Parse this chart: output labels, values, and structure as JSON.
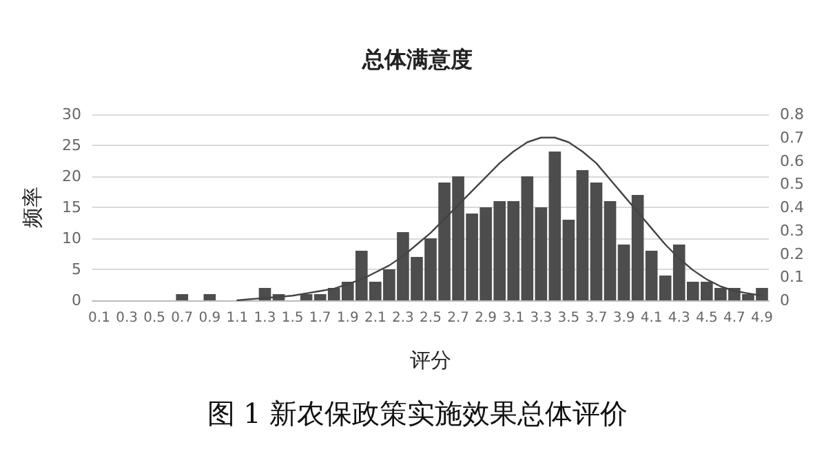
{
  "chart_data": {
    "type": "bar",
    "title": "总体满意度",
    "ylabel": "频率",
    "xlabel": "评分",
    "annotations": [
      "图 1 新农保政策实施效果总体评价"
    ],
    "categories": [
      "0.1",
      null,
      "0.3",
      null,
      "0.5",
      null,
      "0.7",
      null,
      "0.9",
      null,
      "1.1",
      null,
      "1.3",
      null,
      "1.5",
      null,
      "1.7",
      null,
      "1.9",
      null,
      "2.1",
      null,
      "2.3",
      null,
      "2.5",
      null,
      "2.7",
      null,
      "2.9",
      null,
      "3.1",
      null,
      "3.3",
      null,
      "3.5",
      null,
      "3.7",
      null,
      "3.9",
      null,
      "4.1",
      null,
      "4.3",
      null,
      "4.5",
      null,
      "4.7",
      null,
      "4.9"
    ],
    "series": [
      {
        "color": "#4d4d4d",
        "values": [
          0,
          0,
          0,
          0,
          0,
          0,
          1,
          0,
          1,
          0,
          0,
          0,
          2,
          1,
          0,
          1,
          1,
          2,
          3,
          8,
          3,
          5,
          11,
          7,
          10,
          19,
          20,
          14,
          15,
          16,
          16,
          20,
          15,
          24,
          13,
          21,
          19,
          16,
          9,
          17,
          8,
          4,
          9,
          3,
          3,
          2,
          2,
          1,
          2
        ]
      },
      {
        "type": "line",
        "axis": "y2",
        "color": "#444444",
        "values": [
          null,
          null,
          null,
          null,
          null,
          null,
          null,
          null,
          null,
          null,
          0,
          0.005,
          0.01,
          0.015,
          0.02,
          0.03,
          0.04,
          0.05,
          0.07,
          0.09,
          0.12,
          0.15,
          0.19,
          0.24,
          0.29,
          0.35,
          0.41,
          0.47,
          0.53,
          0.59,
          0.64,
          0.68,
          0.7,
          0.7,
          0.68,
          0.64,
          0.59,
          0.52,
          0.45,
          0.38,
          0.31,
          0.24,
          0.18,
          0.13,
          0.09,
          0.06,
          0.04,
          0.03,
          0.02
        ]
      }
    ],
    "ylim": [
      0,
      30
    ],
    "yticks": [
      0,
      5,
      10,
      15,
      20,
      25,
      30
    ],
    "y2lim": [
      0,
      0.8
    ],
    "y2ticks": [
      0,
      0.1,
      0.2,
      0.3,
      0.4,
      0.5,
      0.6,
      0.7,
      0.8
    ],
    "grid": "y",
    "marker": "none",
    "line_style": "solid"
  }
}
